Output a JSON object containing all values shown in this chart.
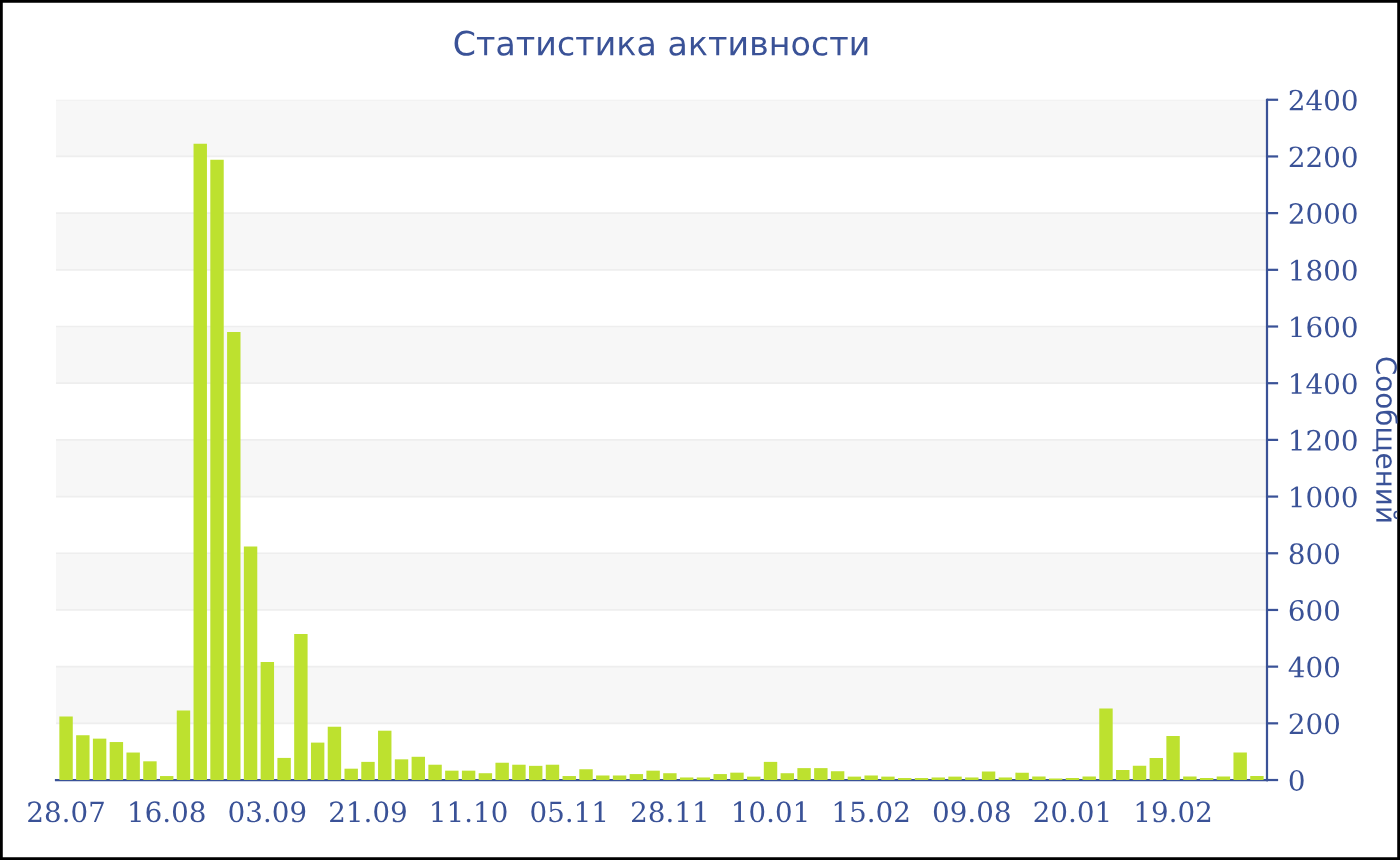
{
  "chart_data": {
    "type": "bar",
    "title": "Статистика активности",
    "ylabel": "Сообщений",
    "categories": [
      "28.07",
      null,
      null,
      null,
      null,
      null,
      "16.08",
      null,
      null,
      null,
      null,
      null,
      "03.09",
      null,
      null,
      null,
      null,
      null,
      "21.09",
      null,
      null,
      null,
      null,
      null,
      "11.10",
      null,
      null,
      null,
      null,
      null,
      "05.11",
      null,
      null,
      null,
      null,
      null,
      "28.11",
      null,
      null,
      null,
      null,
      null,
      "10.01",
      null,
      null,
      null,
      null,
      null,
      "15.02",
      null,
      null,
      null,
      null,
      null,
      "09.08",
      null,
      null,
      null,
      null,
      null,
      "20.01",
      null,
      null,
      null,
      null,
      null,
      "19.02",
      null,
      null,
      null,
      null,
      null
    ],
    "values": [
      224,
      158,
      146,
      134,
      97,
      66,
      14,
      245,
      2245,
      2188,
      1581,
      824,
      416,
      78,
      515,
      132,
      188,
      40,
      64,
      174,
      73,
      82,
      54,
      33,
      33,
      24,
      61,
      54,
      50,
      54,
      14,
      38,
      16,
      16,
      21,
      33,
      24,
      9,
      9,
      21,
      26,
      12,
      64,
      24,
      42,
      42,
      31,
      12,
      16,
      12,
      7,
      7,
      9,
      12,
      9,
      30,
      9,
      26,
      12,
      5,
      7,
      12,
      252,
      35,
      50,
      78,
      155,
      12,
      7,
      12,
      97,
      14
    ],
    "color": "#bde12f",
    "ylim": [
      0,
      2400
    ],
    "yticks": [
      0,
      200,
      400,
      600,
      800,
      1000,
      1200,
      1400,
      1600,
      1800,
      2000,
      2200,
      2400
    ],
    "grid": "y"
  }
}
